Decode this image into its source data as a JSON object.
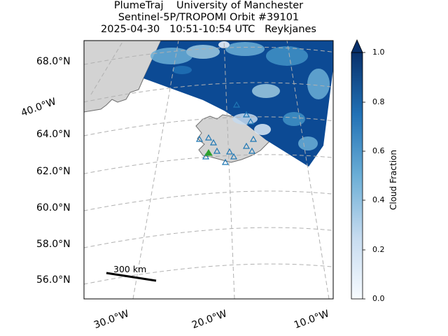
{
  "title": {
    "line1": "PlumeTraj    University of Manchester",
    "line2": "Sentinel-5P/TROPOMI Orbit #39101",
    "line3": "2025-04-30   10:51-10:54 UTC   Reykjanes"
  },
  "lat_labels": [
    "68.0°N",
    "64.0°N",
    "62.0°N",
    "60.0°N",
    "58.0°N",
    "56.0°N"
  ],
  "lon_labels": [
    "40.0°W",
    "30.0°W",
    "20.0°W",
    "10.0°W"
  ],
  "colorbar": {
    "label": "Cloud Fraction",
    "ticks": [
      "0.0",
      "0.2",
      "0.4",
      "0.6",
      "0.8",
      "1.0"
    ],
    "colormap": [
      "#f7fbff",
      "#c6dbef",
      "#6baed6",
      "#2171b5",
      "#08306b"
    ]
  },
  "scale_bar": {
    "label": "300 km"
  },
  "colors": {
    "land": "#d3d3d3",
    "coast": "#6e6e6e",
    "grid": "#b0b0b0",
    "volcano": "#2ca02c",
    "station": "#1f77b4"
  }
}
